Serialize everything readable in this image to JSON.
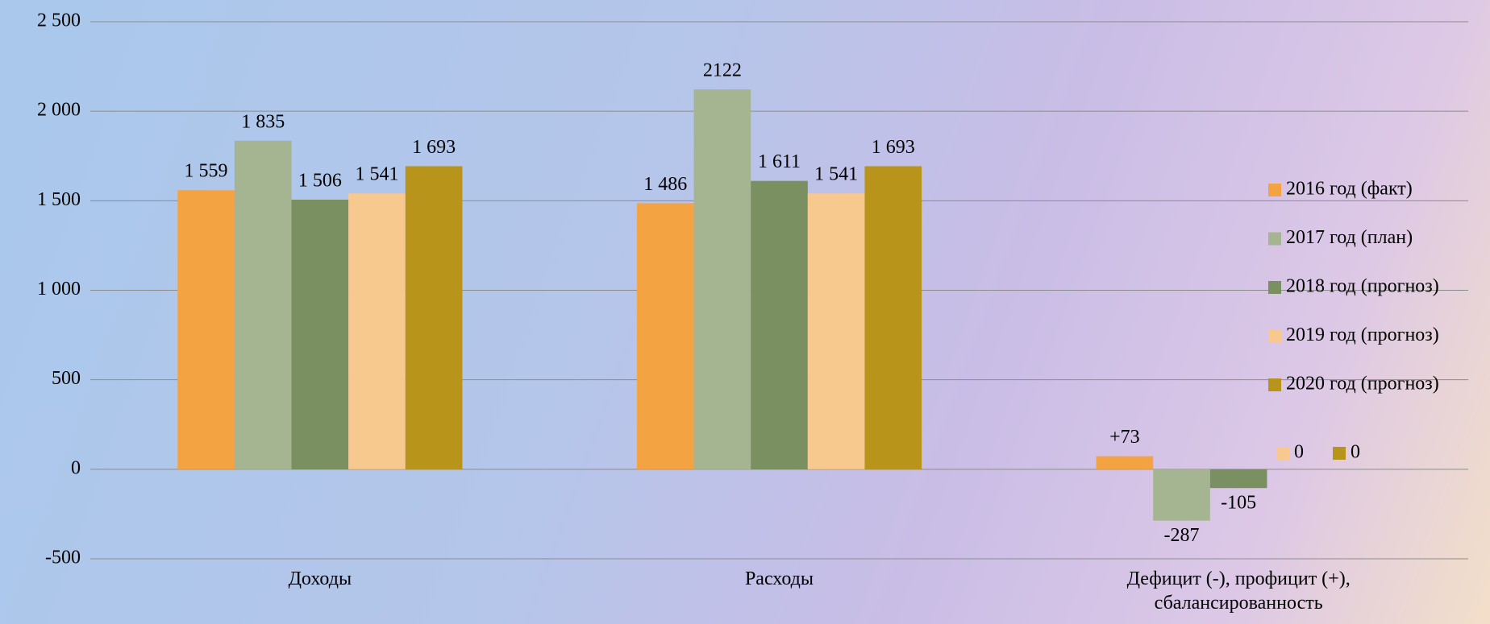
{
  "chart_data": {
    "type": "bar",
    "categories": [
      "Доходы",
      "Расходы",
      "Дефицит (-), профицит (+), сбалансированность"
    ],
    "series": [
      {
        "name": "2016 год (факт)",
        "color": "#f4a343",
        "values": [
          1559,
          1486,
          73
        ],
        "value_labels": [
          "1 559",
          "1 486",
          "+73"
        ]
      },
      {
        "name": "2017 год (план)",
        "color": "#a5b592",
        "values": [
          1835,
          2122,
          -287
        ],
        "value_labels": [
          "1 835",
          "2122",
          "-287"
        ]
      },
      {
        "name": "2018 год (прогноз)",
        "color": "#7a9060",
        "values": [
          1506,
          1611,
          -105
        ],
        "value_labels": [
          "1 506",
          "1 611",
          "-105"
        ]
      },
      {
        "name": "2019 год (прогноз)",
        "color": "#f7c98f",
        "values": [
          1541,
          1541,
          null
        ],
        "value_labels": [
          "1 541",
          "1 541",
          null
        ]
      },
      {
        "name": "2020 год (прогноз)",
        "color": "#b8941a",
        "values": [
          1693,
          1693,
          null
        ],
        "value_labels": [
          "1 693",
          "1 693",
          null
        ]
      },
      {
        "name": "0",
        "color": "#f7c98f",
        "values": [
          null,
          null,
          null
        ]
      },
      {
        "name": "0",
        "color": "#b8941a",
        "values": [
          null,
          null,
          null
        ]
      }
    ],
    "ylim": [
      -500,
      2500
    ],
    "yticks": [
      -500,
      0,
      500,
      {
        "value": 1000,
        "label": "1 000"
      },
      {
        "value": 1500,
        "label": "1 500"
      },
      {
        "value": 2000,
        "label": "2 000"
      },
      {
        "value": 2500,
        "label": "2 500"
      }
    ],
    "grid": true,
    "legend": "right"
  }
}
